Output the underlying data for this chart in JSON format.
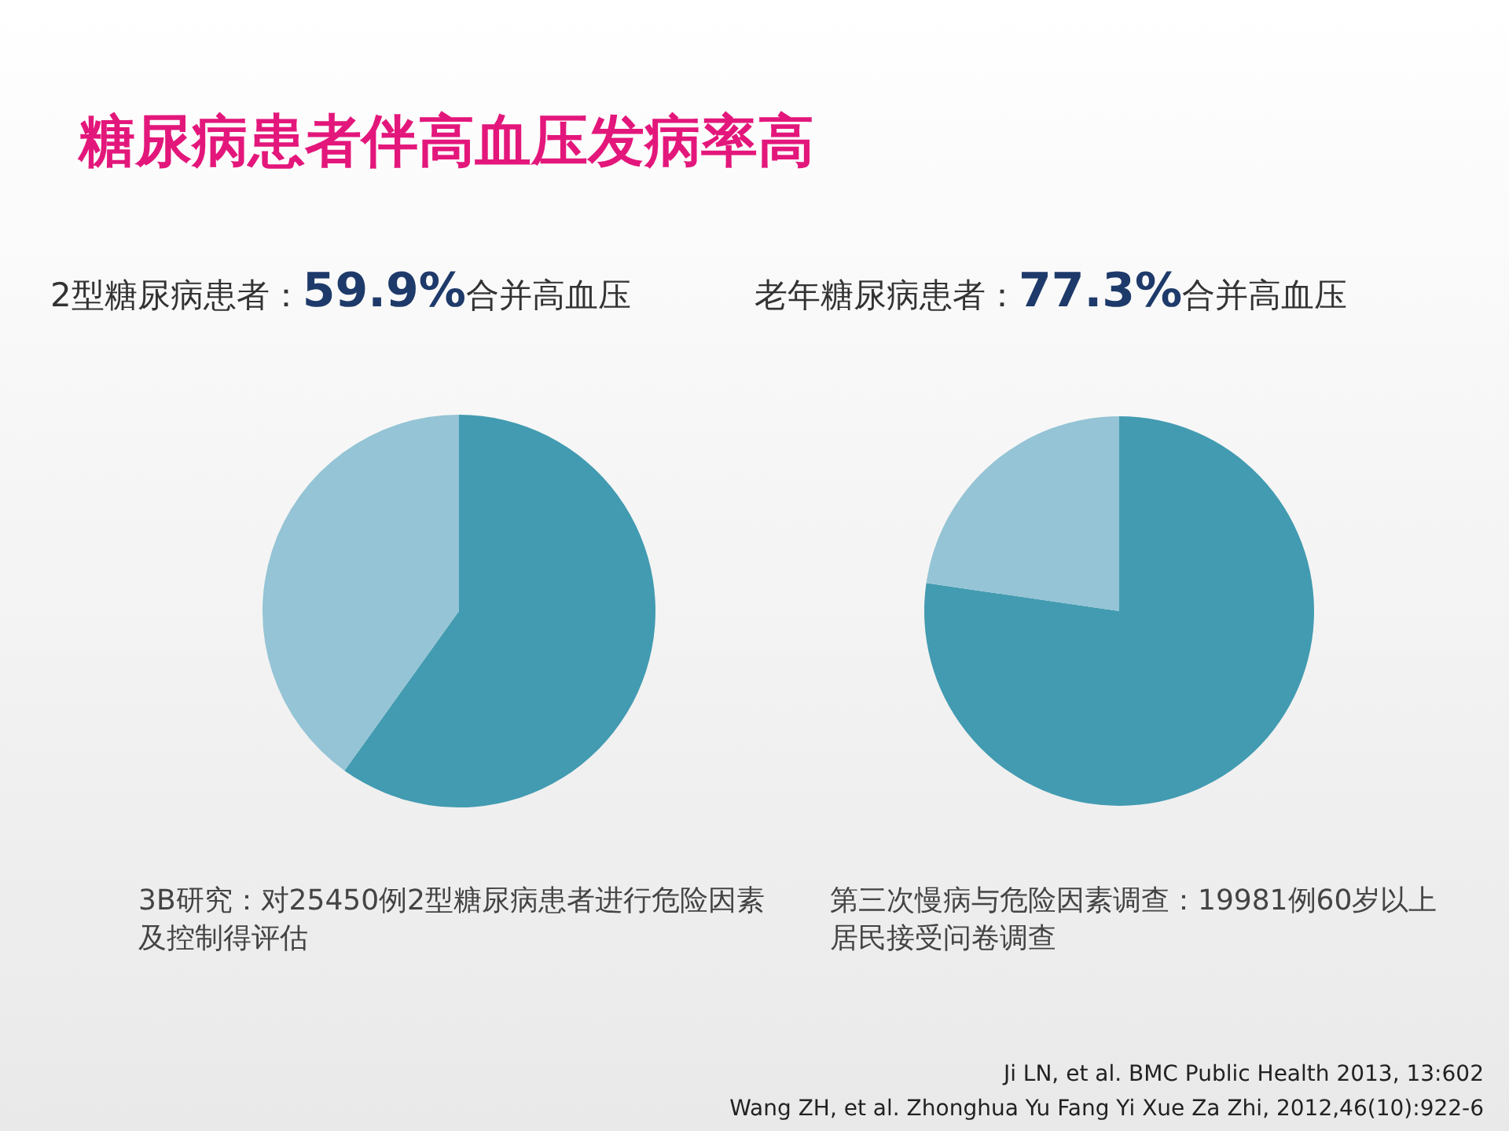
{
  "chart_data": [
    {
      "type": "pie",
      "title": "糖尿病患者伴高血压发病率高",
      "subtitle": "2型糖尿病患者：**59.9%**合并高血压",
      "categories": [
        null,
        null
      ],
      "values": [
        59.9,
        40.1
      ],
      "colors": [
        "#429bb1",
        "#94c4d5"
      ],
      "annotations": [
        "3B研究：对25450例2型糖尿病患者进行危险因素及控制得评估",
        "Ji LN, et al. BMC Public Health 2013, 13:602"
      ]
    },
    {
      "type": "pie",
      "subtitle": "老年糖尿病患者：**77.3%**合并高血压",
      "categories": [
        null,
        null
      ],
      "values": [
        77.3,
        22.7
      ],
      "colors": [
        "#429bb1",
        "#94c4d5"
      ],
      "annotations": [
        "第三次慢病与危险因素调查：19981例60岁以上居民接受问卷调查",
        "Wang ZH, et al. Zhonghua Yu Fang Yi Xue Za Zhi, 2012,46(10):922-6"
      ]
    }
  ]
}
